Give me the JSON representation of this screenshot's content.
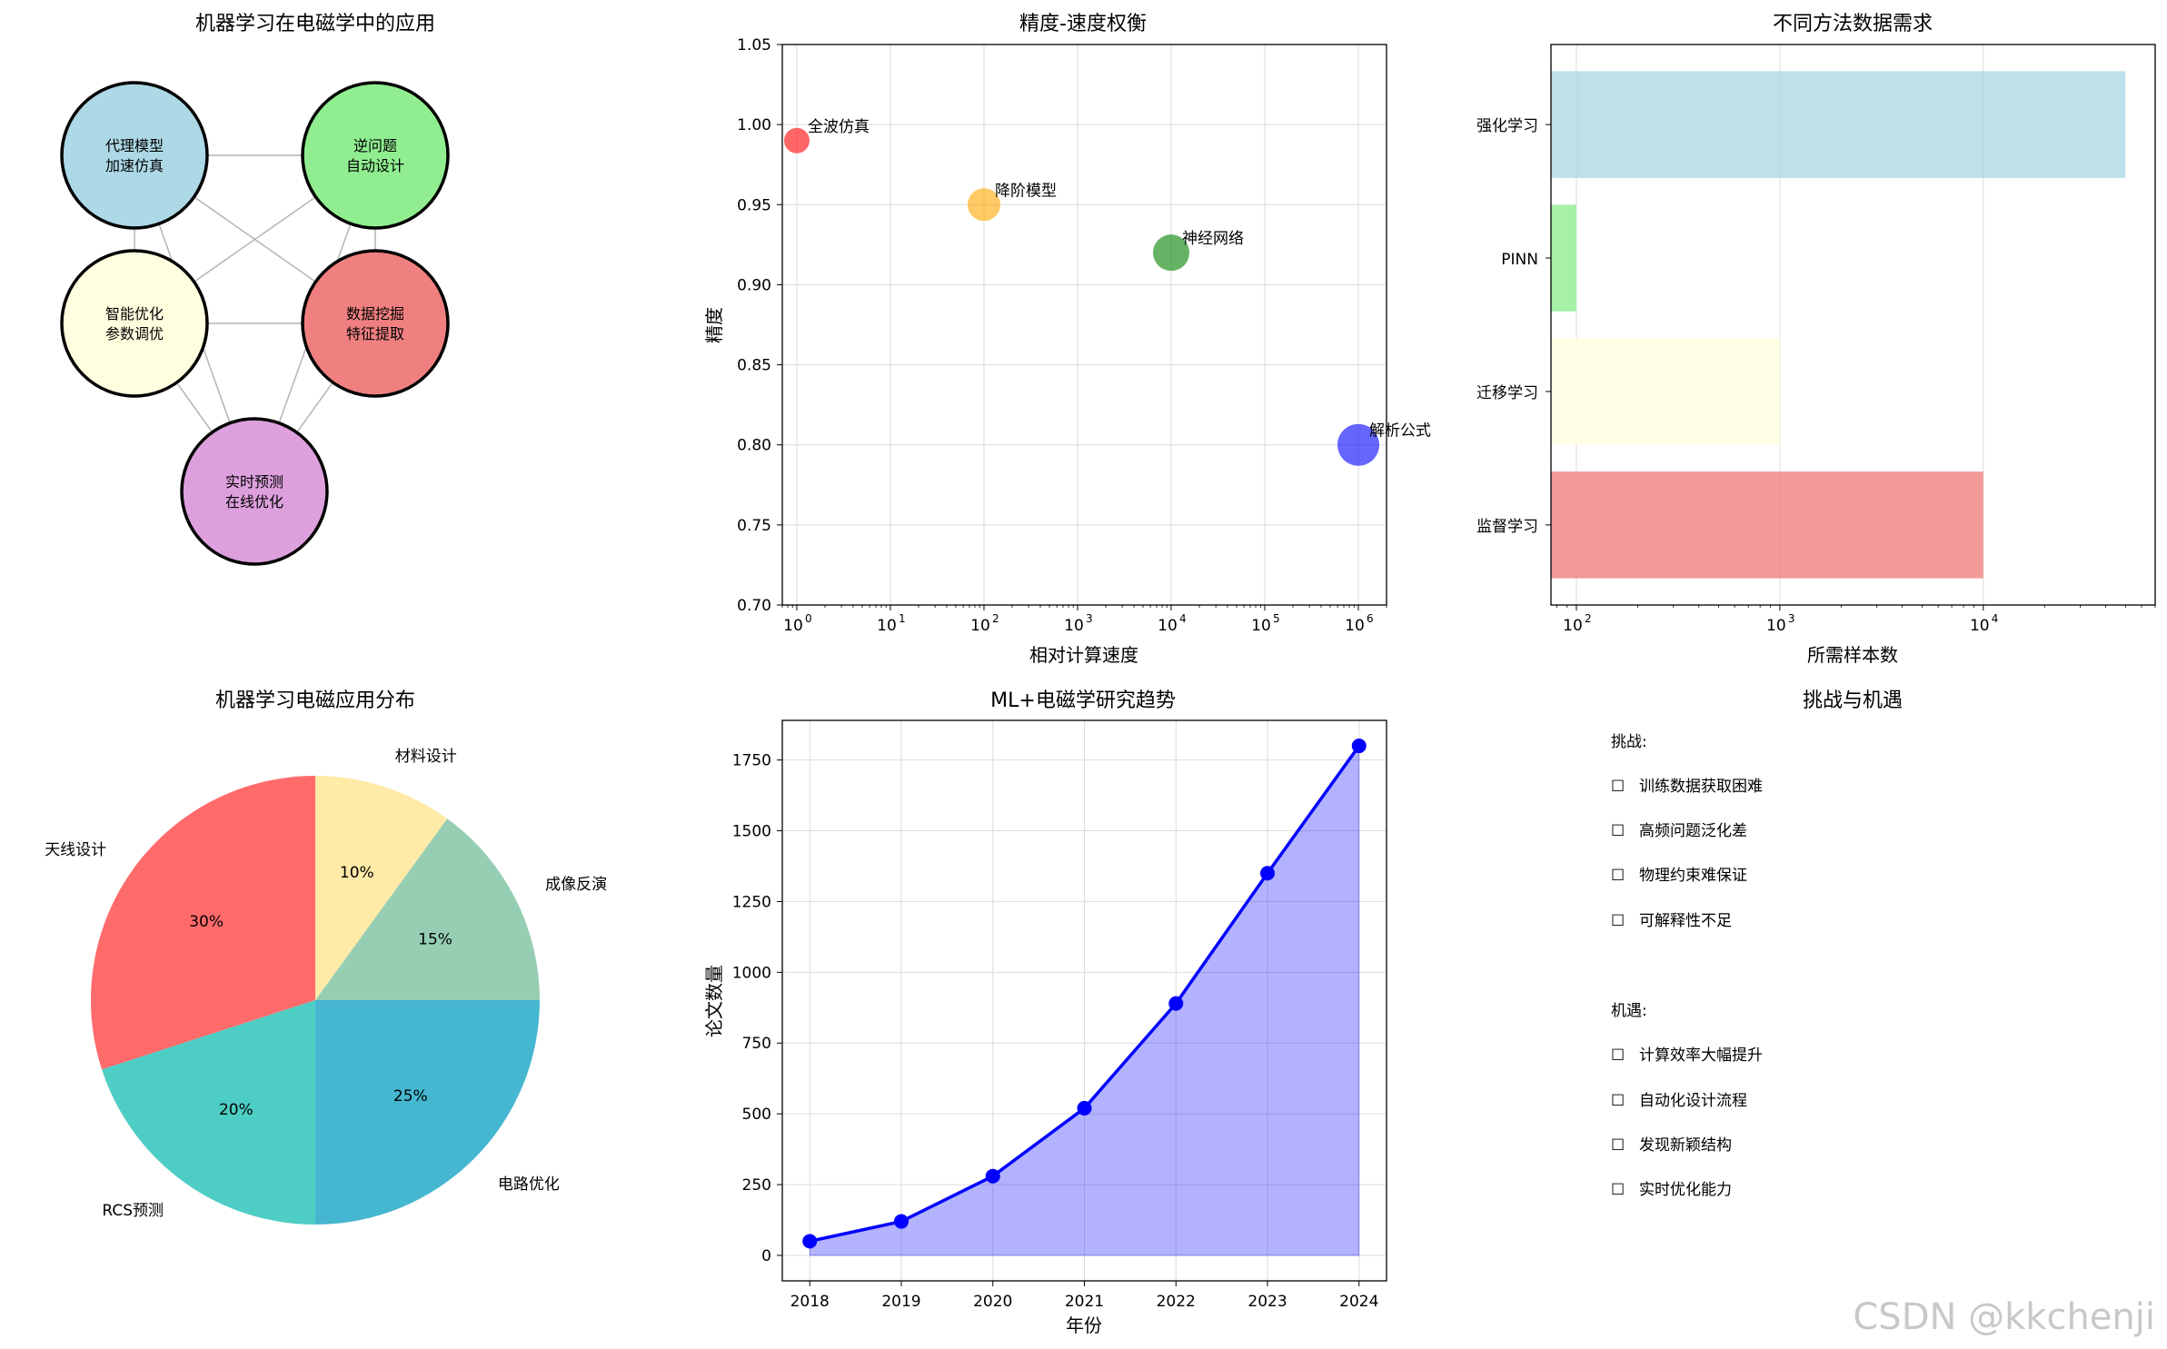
{
  "network": {
    "title": "机器学习在电磁学中的应用",
    "nodes": [
      {
        "line1": "代理模型",
        "line2": "加速仿真",
        "color": "#add8e6"
      },
      {
        "line1": "逆问题",
        "line2": "自动设计",
        "color": "#90ee90"
      },
      {
        "line1": "智能优化",
        "line2": "参数调优",
        "color": "#ffffe0"
      },
      {
        "line1": "数据挖掘",
        "line2": "特征提取",
        "color": "#f08080"
      },
      {
        "line1": "实时预测",
        "line2": "在线优化",
        "color": "#dda0dd"
      }
    ]
  },
  "tradeoff": {
    "title": "精度-速度权衡",
    "xlabel": "相对计算速度",
    "ylabel": "精度",
    "ylim": [
      0.7,
      1.05
    ],
    "yticks": [
      "0.70",
      "0.75",
      "0.80",
      "0.85",
      "0.90",
      "0.95",
      "1.00",
      "1.05"
    ],
    "xticks_exp": [
      "0",
      "1",
      "2",
      "3",
      "4",
      "5",
      "6"
    ]
  },
  "data_need": {
    "title": "不同方法数据需求",
    "xlabel": "所需样本数",
    "xticks_exp": [
      "2",
      "3",
      "4"
    ]
  },
  "pie": {
    "title": "机器学习电磁应用分布"
  },
  "trend": {
    "title": "ML+电磁学研究趋势",
    "xlabel": "年份",
    "ylabel": "论文数量",
    "yticks": [
      "0",
      "250",
      "500",
      "750",
      "1000",
      "1250",
      "1500",
      "1750"
    ]
  },
  "challenges": {
    "title": "挑战与机遇",
    "challenge_header": "挑战:",
    "challenge_items": [
      "训练数据获取困难",
      "高频问题泛化差",
      "物理约束难保证",
      "可解释性不足"
    ],
    "opportunity_header": "机遇:",
    "opportunity_items": [
      "计算效率大幅提升",
      "自动化设计流程",
      "发现新颖结构",
      "实时优化能力"
    ],
    "challenge_color": "#ff0000",
    "opportunity_color": "#008000",
    "checkbox_glyph": "☐"
  },
  "watermark": "CSDN @kkchenji",
  "chart_data": [
    {
      "type": "scatter",
      "title": "精度-速度权衡",
      "xlabel": "相对计算速度",
      "ylabel": "精度",
      "xscale": "log",
      "xlim": [
        0.7,
        2000000
      ],
      "ylim": [
        0.7,
        1.05
      ],
      "points": [
        {
          "label": "全波仿真",
          "x": 1,
          "y": 0.99,
          "color": "#ff0000"
        },
        {
          "label": "降阶模型",
          "x": 100,
          "y": 0.95,
          "color": "#ffa500"
        },
        {
          "label": "神经网络",
          "x": 10000,
          "y": 0.92,
          "color": "#008000"
        },
        {
          "label": "解析公式",
          "x": 1000000,
          "y": 0.8,
          "color": "#0000ff"
        }
      ]
    },
    {
      "type": "bar",
      "orientation": "horizontal",
      "title": "不同方法数据需求",
      "xlabel": "所需样本数",
      "xscale": "log",
      "xlim": [
        75,
        70000
      ],
      "categories": [
        "监督学习",
        "迁移学习",
        "PINN",
        "强化学习"
      ],
      "values": [
        10000,
        1000,
        100,
        50000
      ],
      "colors": [
        "#f08080",
        "#ffffe0",
        "#90ee90",
        "#add8e6"
      ]
    },
    {
      "type": "pie",
      "title": "机器学习电磁应用分布",
      "labels": [
        "天线设计",
        "RCS预测",
        "电路优化",
        "成像反演",
        "材料设计"
      ],
      "values": [
        30,
        20,
        25,
        15,
        10
      ],
      "pct_labels": [
        "30%",
        "20%",
        "25%",
        "15%",
        "10%"
      ],
      "colors": [
        "#ff6b6b",
        "#4ecdc4",
        "#45b7d1",
        "#96ceb4",
        "#ffeaa7"
      ]
    },
    {
      "type": "area",
      "title": "ML+电磁学研究趋势",
      "xlabel": "年份",
      "ylabel": "论文数量",
      "x": [
        "2018",
        "2019",
        "2020",
        "2021",
        "2022",
        "2023",
        "2024"
      ],
      "values": [
        50,
        120,
        280,
        520,
        890,
        1350,
        1800
      ],
      "ylim": [
        -90,
        1890
      ],
      "line_color": "#0000ff",
      "fill_color": "#0000ff"
    }
  ]
}
